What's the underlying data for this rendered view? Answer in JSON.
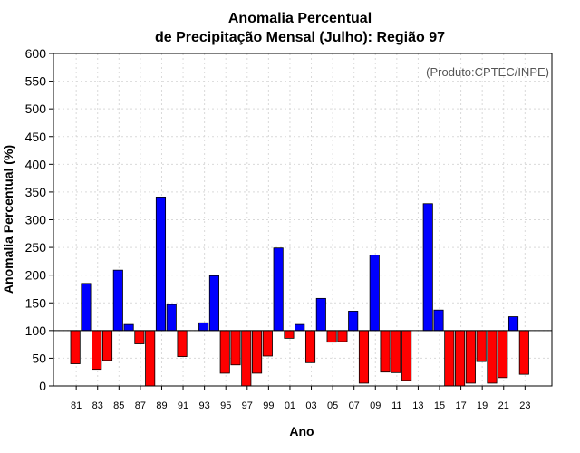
{
  "chart_data": {
    "type": "bar",
    "title_line1": "Anomalia Percentual",
    "title_line2": "de Precipitação Mensal (Julho): Região 97",
    "xlabel": "Ano",
    "ylabel": "Anomalia Percentual (%)",
    "credit": "(Produto:CPTEC/INPE)",
    "baseline": 100,
    "ylim": [
      0,
      600
    ],
    "yticks": [
      0,
      50,
      100,
      150,
      200,
      250,
      300,
      350,
      400,
      450,
      500,
      550,
      600
    ],
    "years": [
      1981,
      1982,
      1983,
      1984,
      1985,
      1986,
      1987,
      1988,
      1989,
      1990,
      1991,
      1992,
      1993,
      1994,
      1995,
      1996,
      1997,
      1998,
      1999,
      2000,
      2001,
      2002,
      2003,
      2004,
      2005,
      2006,
      2007,
      2008,
      2009,
      2010,
      2011,
      2012,
      2013,
      2014,
      2015,
      2016,
      2017,
      2018,
      2019,
      2020,
      2021,
      2022,
      2023
    ],
    "tick_labels": [
      "81",
      "83",
      "85",
      "87",
      "89",
      "91",
      "93",
      "95",
      "97",
      "99",
      "01",
      "03",
      "05",
      "07",
      "09",
      "11",
      "13",
      "15",
      "17",
      "19",
      "21",
      "23"
    ],
    "values": [
      40,
      185,
      30,
      46,
      209,
      111,
      76,
      0,
      341,
      147,
      53,
      100,
      114,
      199,
      23,
      38,
      0,
      23,
      54,
      249,
      86,
      111,
      42,
      158,
      79,
      80,
      135,
      5,
      236,
      25,
      24,
      10,
      100,
      329,
      137,
      0,
      0,
      5,
      44,
      5,
      15,
      125,
      21
    ],
    "colors": {
      "positive": "#0000ff",
      "negative": "#ff0000",
      "edge": "#000000",
      "grid": "#d9d9d9"
    }
  }
}
